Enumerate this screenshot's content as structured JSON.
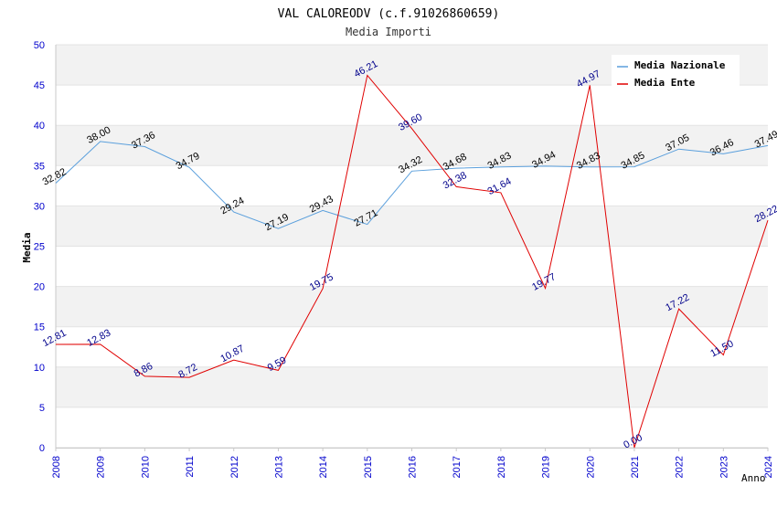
{
  "chart_data": {
    "type": "line",
    "title": "VAL CALOREODV (c.f.91026860659)",
    "subtitle": "Media Importi",
    "xlabel": "Anno",
    "ylabel": "Media",
    "ylim": [
      0,
      50
    ],
    "y_ticks": [
      "0",
      "5",
      "10",
      "15",
      "20",
      "25",
      "30",
      "35",
      "40",
      "45",
      "50"
    ],
    "grid": true,
    "legend_position": "top-right",
    "categories": [
      "2008",
      "2009",
      "2010",
      "2011",
      "2012",
      "2013",
      "2014",
      "2015",
      "2016",
      "2017",
      "2018",
      "2019",
      "2020",
      "2021",
      "2022",
      "2023",
      "2024"
    ],
    "series": [
      {
        "name": "Media Nazionale",
        "color": "#5a9fdc",
        "label_color": "#000000",
        "values": [
          32.82,
          38.0,
          37.36,
          34.79,
          29.24,
          27.19,
          29.43,
          27.71,
          34.32,
          34.68,
          34.83,
          34.94,
          34.83,
          34.85,
          37.05,
          36.46,
          37.49
        ],
        "labels": [
          "32.82",
          "38.00",
          "37.36",
          "34.79",
          "29.24",
          "27.19",
          "29.43",
          "27.71",
          "34.32",
          "34.68",
          "34.83",
          "34.94",
          "34.83",
          "34.85",
          "37.05",
          "36.46",
          "37.49"
        ]
      },
      {
        "name": "Media Ente",
        "color": "#e00000",
        "label_color": "#00008b",
        "values": [
          12.81,
          12.83,
          8.86,
          8.72,
          10.87,
          9.59,
          19.75,
          46.21,
          39.6,
          32.38,
          31.64,
          19.77,
          44.97,
          0.0,
          17.22,
          11.5,
          28.22
        ],
        "labels": [
          "12.81",
          "12.83",
          "8.86",
          "8.72",
          "10.87",
          "9.59",
          "19.75",
          "46.21",
          "39.60",
          "32.38",
          "31.64",
          "19.77",
          "44.97",
          "0.00",
          "17.22",
          "11.50",
          "28.22"
        ]
      }
    ]
  }
}
